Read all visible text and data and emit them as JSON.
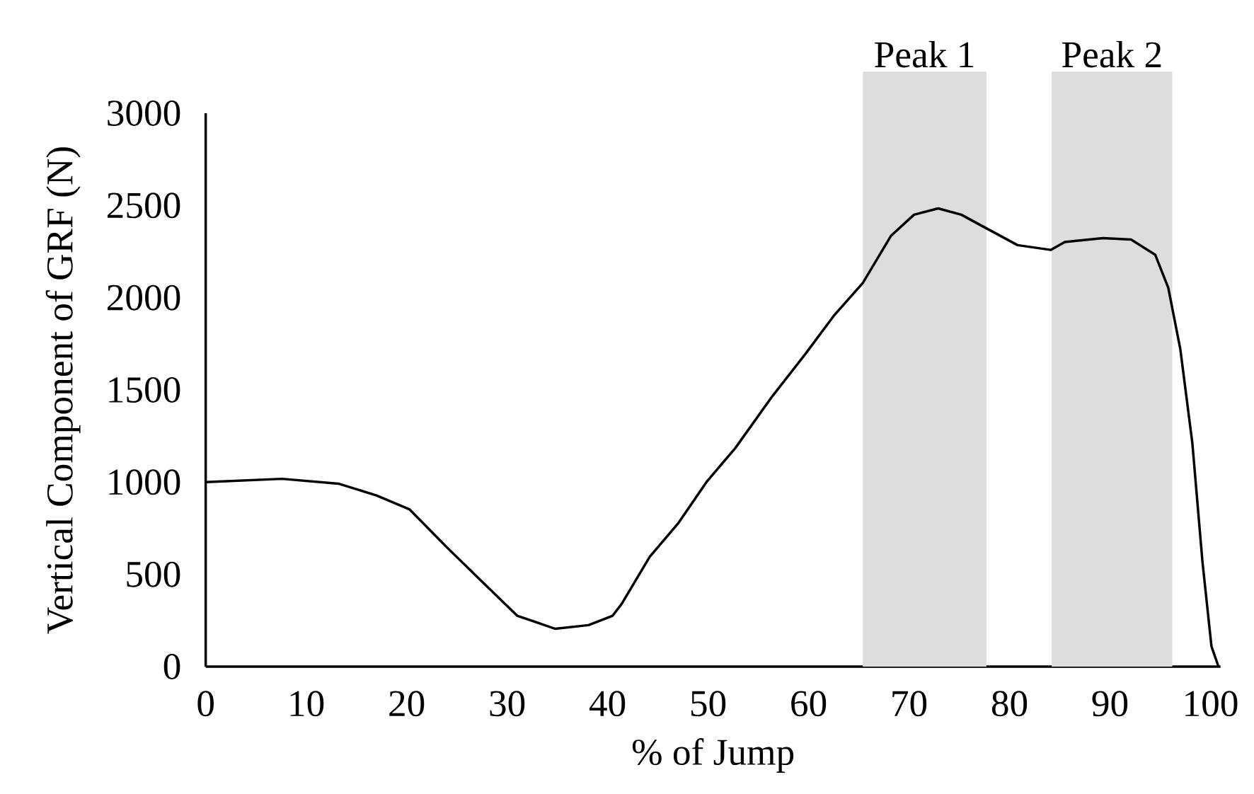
{
  "chart_data": {
    "type": "line",
    "xlabel": "% of Jump",
    "ylabel": "Vertical Component of GRF (N)",
    "x": [
      0,
      7.6,
      13.2,
      17,
      20.3,
      24,
      27.8,
      31,
      34.8,
      38.1,
      40.5,
      41.4,
      44.2,
      47,
      49.9,
      52.7,
      56.4,
      59.7,
      62.5,
      65.4,
      68.2,
      70.5,
      72.9,
      75.2,
      77.6,
      80.8,
      84.1,
      85.5,
      89.3,
      92.1,
      94.5,
      95.8,
      97,
      98.2,
      99.2,
      100.1,
      100.8
    ],
    "series": [
      {
        "color": "#000000",
        "values": [
          1000,
          1018,
          992,
          928,
          852,
          647,
          445,
          276,
          205,
          225,
          276,
          340,
          596,
          775,
          1005,
          1184,
          1466,
          1696,
          1901,
          2080,
          2335,
          2450,
          2484,
          2450,
          2379,
          2285,
          2259,
          2302,
          2323,
          2315,
          2233,
          2054,
          1721,
          1210,
          570,
          110,
          0
        ]
      }
    ],
    "xlim": [
      0,
      101
    ],
    "ylim": [
      0,
      3000
    ],
    "xticks": [
      0,
      10,
      20,
      30,
      40,
      50,
      60,
      70,
      80,
      90,
      100
    ],
    "yticks": [
      0,
      500,
      1000,
      1500,
      2000,
      2500,
      3000
    ],
    "bands": [
      {
        "axis": "x",
        "from": 65.4,
        "to": 77.7,
        "label": "Peak 1",
        "color": "#dddddd"
      },
      {
        "axis": "x",
        "from": 84.2,
        "to": 96.2,
        "label": "Peak 2",
        "color": "#dddddd"
      }
    ],
    "marker": "none",
    "line_style": "solid"
  }
}
